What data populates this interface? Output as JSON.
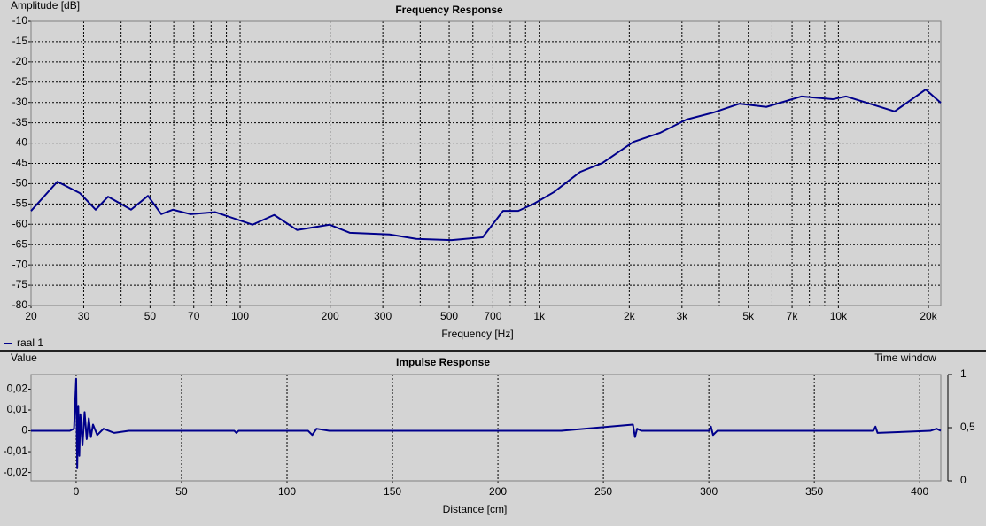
{
  "chart_data": [
    {
      "type": "line",
      "title": "Frequency Response",
      "y_label": "Amplitude [dB]",
      "x_label": "Frequency [Hz]",
      "x_scale": "log",
      "grid": "both",
      "xlim": [
        20,
        22000
      ],
      "xticks": [
        20,
        30,
        50,
        70,
        100,
        200,
        300,
        500,
        700,
        {
          "value": 1000,
          "label": "1k"
        },
        {
          "value": 2000,
          "label": "2k"
        },
        {
          "value": 3000,
          "label": "3k"
        },
        {
          "value": 5000,
          "label": "5k"
        },
        {
          "value": 7000,
          "label": "7k"
        },
        {
          "value": 10000,
          "label": "10k"
        },
        {
          "value": 20000,
          "label": "20k"
        }
      ],
      "x_minor_gridlines": [
        40,
        60,
        80,
        90,
        400,
        600,
        800,
        900,
        4000,
        6000,
        8000,
        9000
      ],
      "ylim": [
        -80,
        -10
      ],
      "yticks": [
        -10,
        -15,
        -20,
        -25,
        -30,
        -35,
        -40,
        -45,
        -50,
        -55,
        -60,
        -65,
        -70,
        -75,
        -80
      ],
      "x": [
        20,
        24.5,
        29.1,
        32.9,
        36.2,
        43.2,
        49.2,
        54.5,
        59.6,
        68.2,
        82.6,
        110,
        130,
        155,
        199,
        233,
        316,
        388,
        510,
        647,
        757,
        851,
        962,
        1118,
        1371,
        1626,
        2065,
        2529,
        3105,
        3812,
        4678,
        5742,
        7534,
        9570,
        10600,
        15420,
        19580,
        22000
      ],
      "series": [
        {
          "name": "raal 1",
          "color": "#00008b",
          "values": [
            -56.7,
            -49.5,
            -52.3,
            -56.4,
            -53.2,
            -56.4,
            -53,
            -57.5,
            -56.4,
            -57.5,
            -57,
            -60.1,
            -57.7,
            -61.4,
            -60.1,
            -62.1,
            -62.5,
            -63.6,
            -63.9,
            -63.2,
            -56.7,
            -56.7,
            -54.9,
            -52.1,
            -47.1,
            -44.9,
            -39.7,
            -37.5,
            -34.2,
            -32.5,
            -30.3,
            -31.1,
            -28.5,
            -29.2,
            -28.5,
            -32.2,
            -26.8,
            -30.1
          ]
        }
      ]
    },
    {
      "type": "line",
      "title": "Impulse Response",
      "y_label": "Value",
      "x_label": "Distance [cm]",
      "y2_label": "Time window",
      "x_scale": "linear",
      "grid": "x",
      "xlim": [
        -21.4,
        410
      ],
      "xticks": [
        0,
        50,
        100,
        150,
        200,
        250,
        300,
        350,
        400
      ],
      "ylim": [
        -0.024,
        0.027
      ],
      "yticks": [
        {
          "value": 0.02,
          "label": "0,02"
        },
        {
          "value": 0.01,
          "label": "0,01"
        },
        0,
        {
          "value": -0.01,
          "label": "-0,01"
        },
        {
          "value": -0.02,
          "label": "-0,02"
        }
      ],
      "y2lim": [
        0,
        1
      ],
      "y2ticks": [
        1,
        {
          "value": 0.5,
          "label": "0,5"
        },
        0
      ],
      "x": [
        -21.4,
        -3,
        -1,
        0,
        0.5,
        1,
        1.5,
        2,
        3,
        4,
        5,
        6,
        7,
        8,
        10,
        13,
        18,
        25,
        75,
        76,
        77,
        100,
        110,
        112,
        114,
        120,
        200,
        230,
        264,
        265,
        266,
        268,
        300,
        301,
        302,
        304,
        378,
        379,
        380,
        405,
        408,
        410
      ],
      "series": [
        {
          "name": "raal 1",
          "color": "#00008b",
          "values": [
            0,
            0,
            0.001,
            0.025,
            -0.018,
            0.012,
            -0.012,
            0.008,
            -0.007,
            0.009,
            -0.004,
            0.006,
            -0.003,
            0.003,
            -0.002,
            0.001,
            -0.001,
            0,
            0,
            -0.001,
            0,
            0,
            0,
            -0.002,
            0.001,
            0,
            0,
            0,
            0.003,
            -0.003,
            0.001,
            0,
            0,
            0.002,
            -0.002,
            0,
            0,
            0.002,
            -0.001,
            0,
            0.001,
            0
          ]
        }
      ]
    }
  ]
}
